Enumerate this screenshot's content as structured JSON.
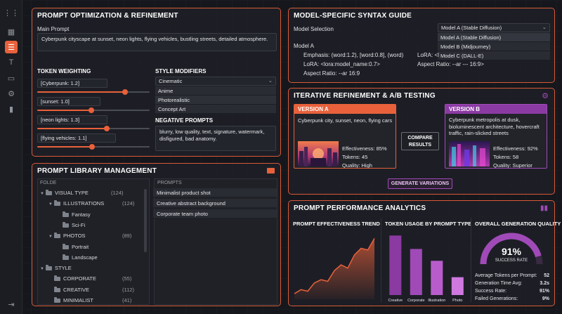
{
  "sidebar": {
    "icons": [
      "grid-icon",
      "sliders-icon",
      "text-icon",
      "chat-icon",
      "gear-icon",
      "bar-chart-icon"
    ],
    "active": "sliders-icon",
    "logout_icon": "logout-icon"
  },
  "optimization": {
    "title": "PROMPT OPTIMIZATION & REFINEMENT",
    "main_prompt_label": "Main Prompt",
    "main_prompt_value": "Cyberpunk cityscape at sunset, neon lights, flying vehicles, bustling streets, detailed atmosphere.",
    "token_weighting_label": "TOKEN WEIGHTING",
    "tokens": [
      {
        "label": "[Cyberpunk: 1.2]",
        "level": 0.78
      },
      {
        "label": "[sunset: 1.0]",
        "level": 0.48
      },
      {
        "label": "[neon lights: 1.3]",
        "level": 0.62
      },
      {
        "label": "[flying vehicles: 1.1]",
        "level": 0.49
      }
    ],
    "style_modifiers_label": "STYLE MODIFIERS",
    "style_selected": "Cinematic",
    "style_options": [
      "Anime",
      "Photorealistic",
      "Concept Art"
    ],
    "negative_label": "NEGATIVE PROMPTS",
    "negative_value": "blurry, low quality, text, signature, watermark, disfigured, bad anatomy."
  },
  "library": {
    "title": "PROMPT LIBRARY MANAGEMENT",
    "folder_header": "FOLDE",
    "prompts_header": "PROMPTS",
    "tree": [
      {
        "label": "VISUAL TYPE",
        "count": "(124)",
        "level": 0,
        "caret": "▼"
      },
      {
        "label": "ILLUSTRATIONS",
        "count": "(124)",
        "level": 1,
        "caret": "▼"
      },
      {
        "label": "Fantasy",
        "count": "",
        "level": 2,
        "caret": ""
      },
      {
        "label": "Sci-Fi",
        "count": "",
        "level": 2,
        "caret": ""
      },
      {
        "label": "PHOTOS",
        "count": "(89)",
        "level": 1,
        "caret": "▼"
      },
      {
        "label": "Portrait",
        "count": "",
        "level": 2,
        "caret": ""
      },
      {
        "label": "Landscape",
        "count": "",
        "level": 2,
        "caret": ""
      },
      {
        "label": "STYLE",
        "count": "",
        "level": 0,
        "caret": "▼"
      },
      {
        "label": "CORPORATE",
        "count": "(55)",
        "level": 1,
        "caret": ""
      },
      {
        "label": "CREATIVE",
        "count": "(112)",
        "level": 1,
        "caret": ""
      },
      {
        "label": "MINIMALIST",
        "count": "(41)",
        "level": 1,
        "caret": ""
      }
    ],
    "prompts": [
      "Minimalist product shot",
      "Creative abstract background",
      "Corporate team photo"
    ]
  },
  "syntax": {
    "title": "MODEL-SPECIFIC SYNTAX GUIDE",
    "selection_label": "Model Selection",
    "selected_model": "Model A (Stable Diffusion)",
    "options": [
      "Model A (Stable Diffusion)",
      "Model B (Midjourney)",
      "Model C (DALL-E)"
    ],
    "model_a_label": "Model A",
    "model_a_rows": [
      "Emphasis: (word:1.2), [word:0.8], (word)",
      "LoRA: <lora:model_name:0.7>",
      "Aspect Ratio: --ar 16:9"
    ],
    "model_b_rows": [
      "LoRA: <l",
      "Aspect Ratio: --ar --- 16:9>"
    ]
  },
  "ab": {
    "title": "ITERATIVE REFINEMENT & A/B TESTING",
    "a": {
      "label": "VERSION A",
      "prompt": "Cyberpunk city, sunset, neon, flying cars",
      "effectiveness": "Effectiveness: 85%",
      "tokens": "Tokens: 45",
      "quality": "Quality: High"
    },
    "b": {
      "label": "VERSION B",
      "prompt": "Cyberpunk metropolis at dusk, bioluminescent architecture, hovercraft traffic, rain-slicked streets",
      "effectiveness": "Effectiveness: 92%",
      "tokens": "Tokens: 58",
      "quality": "Quality: Superior"
    },
    "compare_label": "COMPARE\nRESULTS",
    "compare_line1": "COMPARE",
    "compare_line2": "RESULTS",
    "generate_label": "GENERATE VARIATIONS"
  },
  "analytics": {
    "title": "PROMPT PERFORMANCE ANALYTICS",
    "trend_title": "PROMPT EFFECTIVENESS TREND",
    "usage_title": "TOKEN USAGE BY PROMPT TYPE",
    "quality_title": "OVERALL GENERATION QUALITY",
    "success_value": "91%",
    "success_label": "SUCCESS RATE",
    "success_fraction": 0.91,
    "stats": [
      {
        "label": "Average Tokens per Prompt:",
        "value": "52"
      },
      {
        "label": "Generation Time Avg:",
        "value": "3.2s"
      },
      {
        "label": "Success Rate:",
        "value": "91%"
      },
      {
        "label": "Failed Generations:",
        "value": "9%"
      }
    ],
    "colors": {
      "orange": "#e8613b",
      "purple": "#a04ab8"
    }
  },
  "chart_data": [
    {
      "type": "area",
      "title": "PROMPT EFFECTIVENESS TREND",
      "x": [
        1,
        2,
        3,
        4,
        5,
        6,
        7,
        8,
        9,
        10,
        11,
        12,
        13
      ],
      "values": [
        5,
        10,
        8,
        18,
        22,
        20,
        33,
        40,
        36,
        52,
        60,
        58,
        72
      ],
      "ylim": [
        0,
        80
      ]
    },
    {
      "type": "bar",
      "title": "TOKEN USAGE BY PROMPT TYPE",
      "categories": [
        "Creative",
        "Corporate",
        "Illustration",
        "Photo"
      ],
      "values": [
        80,
        62,
        46,
        24
      ],
      "ylim": [
        0,
        85
      ]
    }
  ]
}
